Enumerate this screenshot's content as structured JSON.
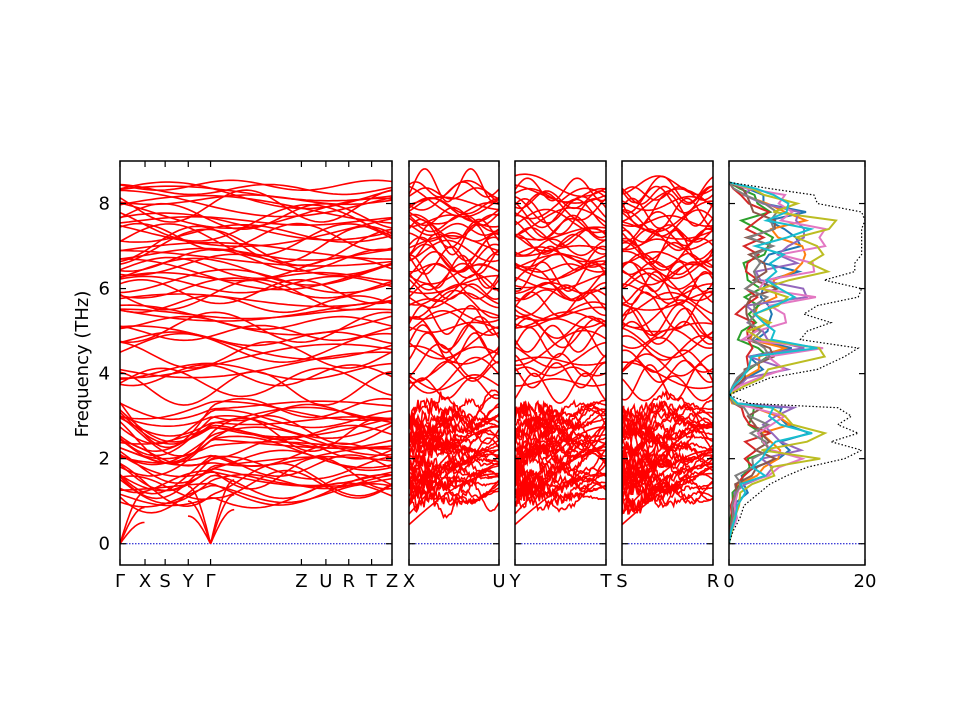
{
  "chart_data": [
    {
      "type": "line",
      "role": "phonon-band-structure",
      "ylabel": "Frequency (THz)",
      "ylim": [
        -0.5,
        9.0
      ],
      "yticks": [
        0,
        2,
        4,
        6,
        8
      ],
      "grid": false,
      "band_color": "#ff0000",
      "zero_line_color": "#0000cc",
      "segments": [
        {
          "labels": [
            "Γ",
            "X",
            "S",
            "Y",
            "Γ",
            "Z",
            "U",
            "R",
            "T",
            "Z"
          ],
          "positions": [
            0,
            0.092,
            0.166,
            0.251,
            0.333,
            0.667,
            0.757,
            0.841,
            0.925,
            1.0
          ]
        },
        {
          "labels": [
            "X",
            "U"
          ],
          "positions": [
            0,
            1
          ]
        },
        {
          "labels": [
            "Y",
            "T"
          ],
          "positions": [
            0,
            1
          ]
        },
        {
          "labels": [
            "S",
            "R"
          ],
          "positions": [
            0,
            1
          ]
        }
      ],
      "band_clusters": {
        "acoustic_optical_low": [
          0.3,
          3.3
        ],
        "mid": [
          3.6,
          5.9
        ],
        "high": [
          5.9,
          8.45
        ]
      },
      "gamma_zero_frequency": 0
    },
    {
      "type": "line",
      "role": "density-of-states",
      "xlim": [
        0,
        20
      ],
      "xticks": [
        0,
        20
      ],
      "xticklabels": [
        "0",
        "20"
      ],
      "ylim": [
        -0.5,
        9.0
      ],
      "total_dos_style": "dotted",
      "partial_colors": [
        "#1f77b4",
        "#ff7f0e",
        "#2ca02c",
        "#d62728",
        "#9467bd",
        "#8c564b",
        "#e377c2",
        "#7f7f7f",
        "#bcbd22",
        "#17becf"
      ],
      "total_dos": [
        [
          0.0,
          0.0
        ],
        [
          0.3,
          0.6
        ],
        [
          0.6,
          1.6
        ],
        [
          0.9,
          2.2
        ],
        [
          1.2,
          4.5
        ],
        [
          1.4,
          6.0
        ],
        [
          1.6,
          8.5
        ],
        [
          1.8,
          11.5
        ],
        [
          2.0,
          17.0
        ],
        [
          2.2,
          19.5
        ],
        [
          2.4,
          15.0
        ],
        [
          2.6,
          19.0
        ],
        [
          2.8,
          16.0
        ],
        [
          3.0,
          18.0
        ],
        [
          3.2,
          16.0
        ],
        [
          3.3,
          3.0
        ],
        [
          3.5,
          0.0
        ],
        [
          3.7,
          3.0
        ],
        [
          3.9,
          6.0
        ],
        [
          4.1,
          13.0
        ],
        [
          4.4,
          17.0
        ],
        [
          4.6,
          19.0
        ],
        [
          4.8,
          10.5
        ],
        [
          5.0,
          11.5
        ],
        [
          5.2,
          15.0
        ],
        [
          5.4,
          11.0
        ],
        [
          5.6,
          13.0
        ],
        [
          5.8,
          19.0
        ],
        [
          6.0,
          19.5
        ],
        [
          6.2,
          14.0
        ],
        [
          6.4,
          18.5
        ],
        [
          6.6,
          18.5
        ],
        [
          6.8,
          19.5
        ],
        [
          7.0,
          19.5
        ],
        [
          7.2,
          19.5
        ],
        [
          7.4,
          19.5
        ],
        [
          7.6,
          20.0
        ],
        [
          7.8,
          19.5
        ],
        [
          8.0,
          13.0
        ],
        [
          8.2,
          12.5
        ],
        [
          8.35,
          6.0
        ],
        [
          8.5,
          0.0
        ]
      ]
    }
  ]
}
